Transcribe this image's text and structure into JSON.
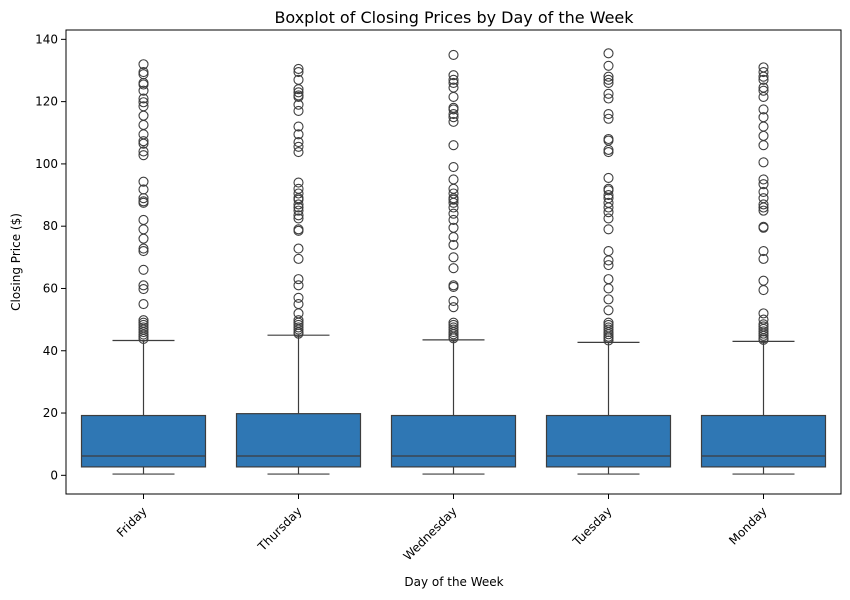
{
  "chart_data": {
    "type": "box",
    "title": "Boxplot of Closing Prices by Day of the Week",
    "xlabel": "Day of the Week",
    "ylabel": "Closing Price ($)",
    "ylim": [
      -6,
      143
    ],
    "yticks": [
      0,
      20,
      40,
      60,
      80,
      100,
      120,
      140
    ],
    "grid": false,
    "box_color": "#2f77b4",
    "line_color": "#3d3d3d",
    "categories": [
      "Friday",
      "Thursday",
      "Wednesday",
      "Tuesday",
      "Monday"
    ],
    "boxes": [
      {
        "category": "Friday",
        "whisker_low": 0.4,
        "q1": 2.7,
        "median": 6.2,
        "q3": 19.2,
        "whisker_high": 43.3,
        "outliers": [
          43.8,
          44.5,
          45.2,
          46.0,
          46.8,
          47.5,
          48.3,
          49.0,
          49.8,
          55.0,
          59.8,
          61.0,
          66.0,
          72.0,
          72.8,
          76.0,
          79.0,
          82.0,
          87.5,
          88.0,
          89.0,
          91.8,
          94.3,
          102.8,
          104.0,
          106.5,
          107.3,
          109.5,
          112.5,
          115.5,
          118.5,
          119.8,
          121.0,
          123.5,
          125.5,
          126.0,
          128.8,
          129.5,
          132.0
        ]
      },
      {
        "category": "Thursday",
        "whisker_low": 0.4,
        "q1": 2.7,
        "median": 6.2,
        "q3": 19.8,
        "whisker_high": 45.0,
        "outliers": [
          45.5,
          46.0,
          46.8,
          47.5,
          48.3,
          49.0,
          49.8,
          52.0,
          55.0,
          57.0,
          61.0,
          63.0,
          69.5,
          72.8,
          78.5,
          79.0,
          82.5,
          83.5,
          85.0,
          86.0,
          87.0,
          88.5,
          89.0,
          90.5,
          92.0,
          94.0,
          103.8,
          105.5,
          107.0,
          109.5,
          112.0,
          117.0,
          119.0,
          121.5,
          122.0,
          123.0,
          124.0,
          127.0,
          129.5,
          130.5
        ]
      },
      {
        "category": "Wednesday",
        "whisker_low": 0.4,
        "q1": 2.7,
        "median": 6.2,
        "q3": 19.2,
        "whisker_high": 43.5,
        "outliers": [
          44.0,
          44.5,
          45.3,
          46.0,
          46.8,
          47.5,
          48.3,
          49.0,
          54.0,
          56.0,
          60.5,
          61.0,
          66.5,
          70.0,
          74.0,
          76.5,
          79.5,
          82.0,
          84.0,
          86.0,
          87.5,
          88.5,
          89.0,
          90.5,
          92.0,
          95.0,
          99.0,
          106.0,
          113.5,
          115.0,
          116.0,
          117.5,
          118.0,
          121.5,
          124.5,
          126.0,
          127.0,
          128.5,
          135.0
        ]
      },
      {
        "category": "Tuesday",
        "whisker_low": 0.4,
        "q1": 2.7,
        "median": 6.2,
        "q3": 19.2,
        "whisker_high": 42.7,
        "outliers": [
          43.3,
          44.0,
          44.5,
          45.3,
          46.0,
          46.8,
          47.5,
          48.3,
          49.0,
          53.0,
          56.5,
          60.0,
          63.0,
          67.5,
          69.0,
          72.0,
          79.0,
          82.5,
          84.5,
          86.0,
          87.5,
          89.0,
          90.0,
          91.5,
          92.0,
          95.5,
          103.8,
          104.5,
          107.5,
          108.0,
          114.5,
          116.0,
          121.0,
          122.5,
          126.0,
          127.0,
          128.0,
          131.5,
          135.5
        ]
      },
      {
        "category": "Monday",
        "whisker_low": 0.4,
        "q1": 2.7,
        "median": 6.2,
        "q3": 19.2,
        "whisker_high": 43.0,
        "outliers": [
          43.5,
          44.0,
          44.8,
          45.5,
          46.2,
          47.0,
          47.8,
          48.5,
          50.0,
          52.0,
          59.5,
          62.5,
          69.5,
          72.0,
          79.5,
          79.8,
          85.0,
          86.0,
          87.0,
          89.0,
          91.0,
          93.5,
          95.0,
          100.5,
          106.0,
          109.0,
          112.0,
          115.0,
          117.5,
          121.5,
          123.5,
          124.5,
          127.0,
          128.0,
          129.5,
          131.0
        ]
      }
    ]
  }
}
